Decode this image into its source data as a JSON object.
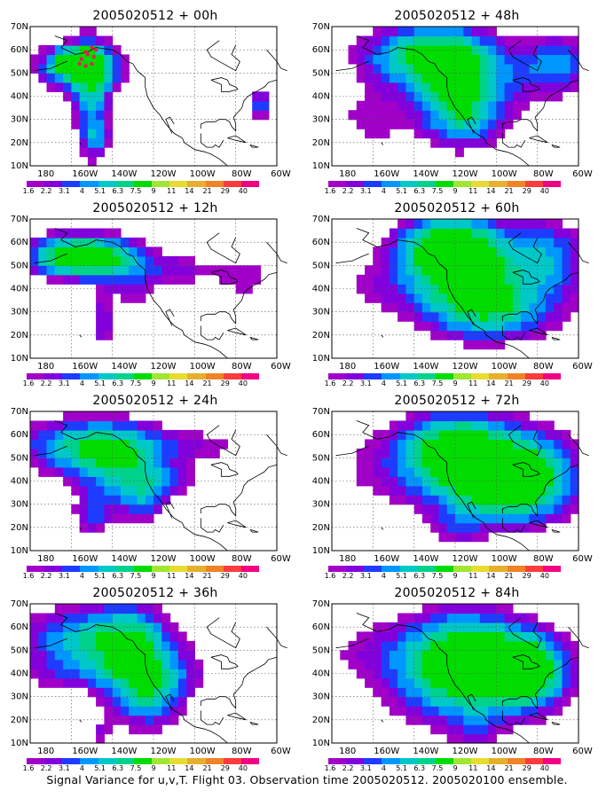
{
  "panels": [
    {
      "title": "2005020512 + 00h",
      "lead": "00h"
    },
    {
      "title": "2005020512 + 48h",
      "lead": "48h"
    },
    {
      "title": "2005020512 + 12h",
      "lead": "12h"
    },
    {
      "title": "2005020512 + 60h",
      "lead": "60h"
    },
    {
      "title": "2005020512 + 24h",
      "lead": "24h"
    },
    {
      "title": "2005020512 + 72h",
      "lead": "72h"
    },
    {
      "title": "2005020512 + 36h",
      "lead": "36h"
    },
    {
      "title": "2005020512 + 84h",
      "lead": "84h"
    }
  ],
  "axes": {
    "lat_labels": [
      "70N",
      "60N",
      "50N",
      "40N",
      "30N",
      "20N",
      "10N"
    ],
    "lon_labels": [
      "180",
      "160W",
      "140W",
      "120W",
      "100W",
      "80W",
      "60W"
    ]
  },
  "colorbar": {
    "levels": [
      "1.6",
      "2.2",
      "3.1",
      "4",
      "5.1",
      "6.3",
      "7.5",
      "9",
      "11",
      "14",
      "21",
      "29",
      "40"
    ],
    "colors": [
      "#a000c8",
      "#8200dc",
      "#1e3cff",
      "#0096ff",
      "#00c8c8",
      "#00d28c",
      "#00dc00",
      "#a0e632",
      "#e6dc32",
      "#e6af2d",
      "#f08228",
      "#fa3c3c",
      "#f00082"
    ]
  },
  "caption": "Signal Variance for u,v,T. Flight 03. Observation time 2005020512. 2005020100 ensemble."
}
